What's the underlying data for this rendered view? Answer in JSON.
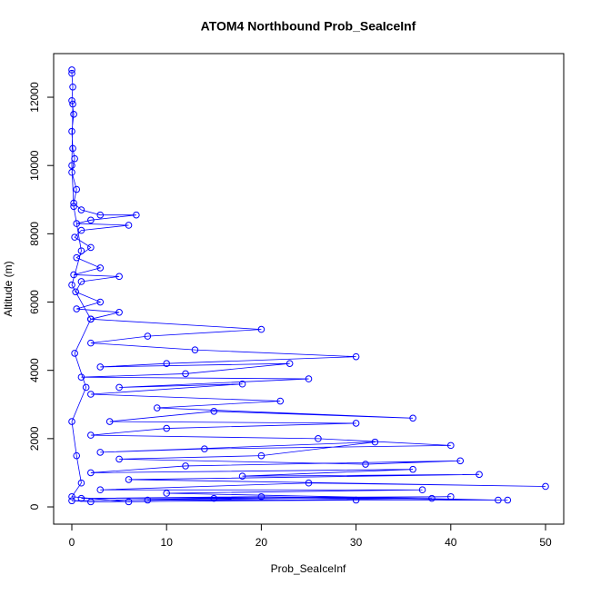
{
  "chart_data": {
    "type": "line",
    "title": "ATOM4 Northbound Prob_SeaIceInf",
    "x_label": "Prob_SeaIceInf",
    "y_label": "Altitude (m)",
    "color": "#0000ff",
    "x": [
      0,
      0,
      0.1,
      0,
      0.2,
      0,
      0.1,
      0.3,
      0,
      0.5,
      0.2,
      1,
      3,
      6.8,
      2,
      0.5,
      6,
      1,
      0.3,
      2,
      0.5,
      3,
      0.2,
      5,
      1,
      0.4,
      3,
      0.5,
      5,
      2,
      20,
      8,
      2,
      13,
      30,
      10,
      3,
      23,
      12,
      1,
      25,
      5,
      18,
      2,
      22,
      9,
      36,
      15,
      4,
      30,
      10,
      2,
      26,
      40,
      14,
      3,
      32,
      20,
      5,
      31,
      41,
      12,
      2,
      36,
      18,
      43,
      6,
      50,
      25,
      3,
      37,
      10,
      45,
      20,
      1,
      40,
      8,
      46,
      30,
      2,
      0,
      15,
      38,
      6,
      0,
      1,
      0.5,
      0,
      1.5,
      0.3,
      2,
      0,
      1,
      0.2,
      0,
      0.1
    ],
    "values": [
      12800,
      12700,
      12300,
      11900,
      11500,
      11000,
      10500,
      10200,
      9800,
      9300,
      8900,
      8700,
      8550,
      8550,
      8400,
      8300,
      8250,
      8100,
      7900,
      7600,
      7300,
      7000,
      6800,
      6750,
      6600,
      6300,
      6000,
      5800,
      5700,
      5500,
      5200,
      5000,
      4800,
      4600,
      4400,
      4200,
      4100,
      4200,
      3900,
      3800,
      3750,
      3500,
      3600,
      3300,
      3100,
      2900,
      2600,
      2800,
      2500,
      2450,
      2300,
      2100,
      2000,
      1800,
      1700,
      1600,
      1900,
      1500,
      1400,
      1250,
      1350,
      1200,
      1000,
      1100,
      900,
      950,
      800,
      600,
      700,
      500,
      500,
      400,
      200,
      300,
      250,
      300,
      200,
      200,
      200,
      150,
      180,
      250,
      250,
      150,
      300,
      700,
      1500,
      2500,
      3500,
      4500,
      5500,
      6500,
      7500,
      8800,
      10000,
      11800
    ],
    "xlim": [
      -1.92,
      51.92
    ],
    "ylim": [
      -505,
      13278
    ],
    "xticks": [
      0,
      10,
      20,
      30,
      40,
      50
    ],
    "yticks": [
      0,
      2000,
      4000,
      6000,
      8000,
      10000,
      12000
    ]
  }
}
